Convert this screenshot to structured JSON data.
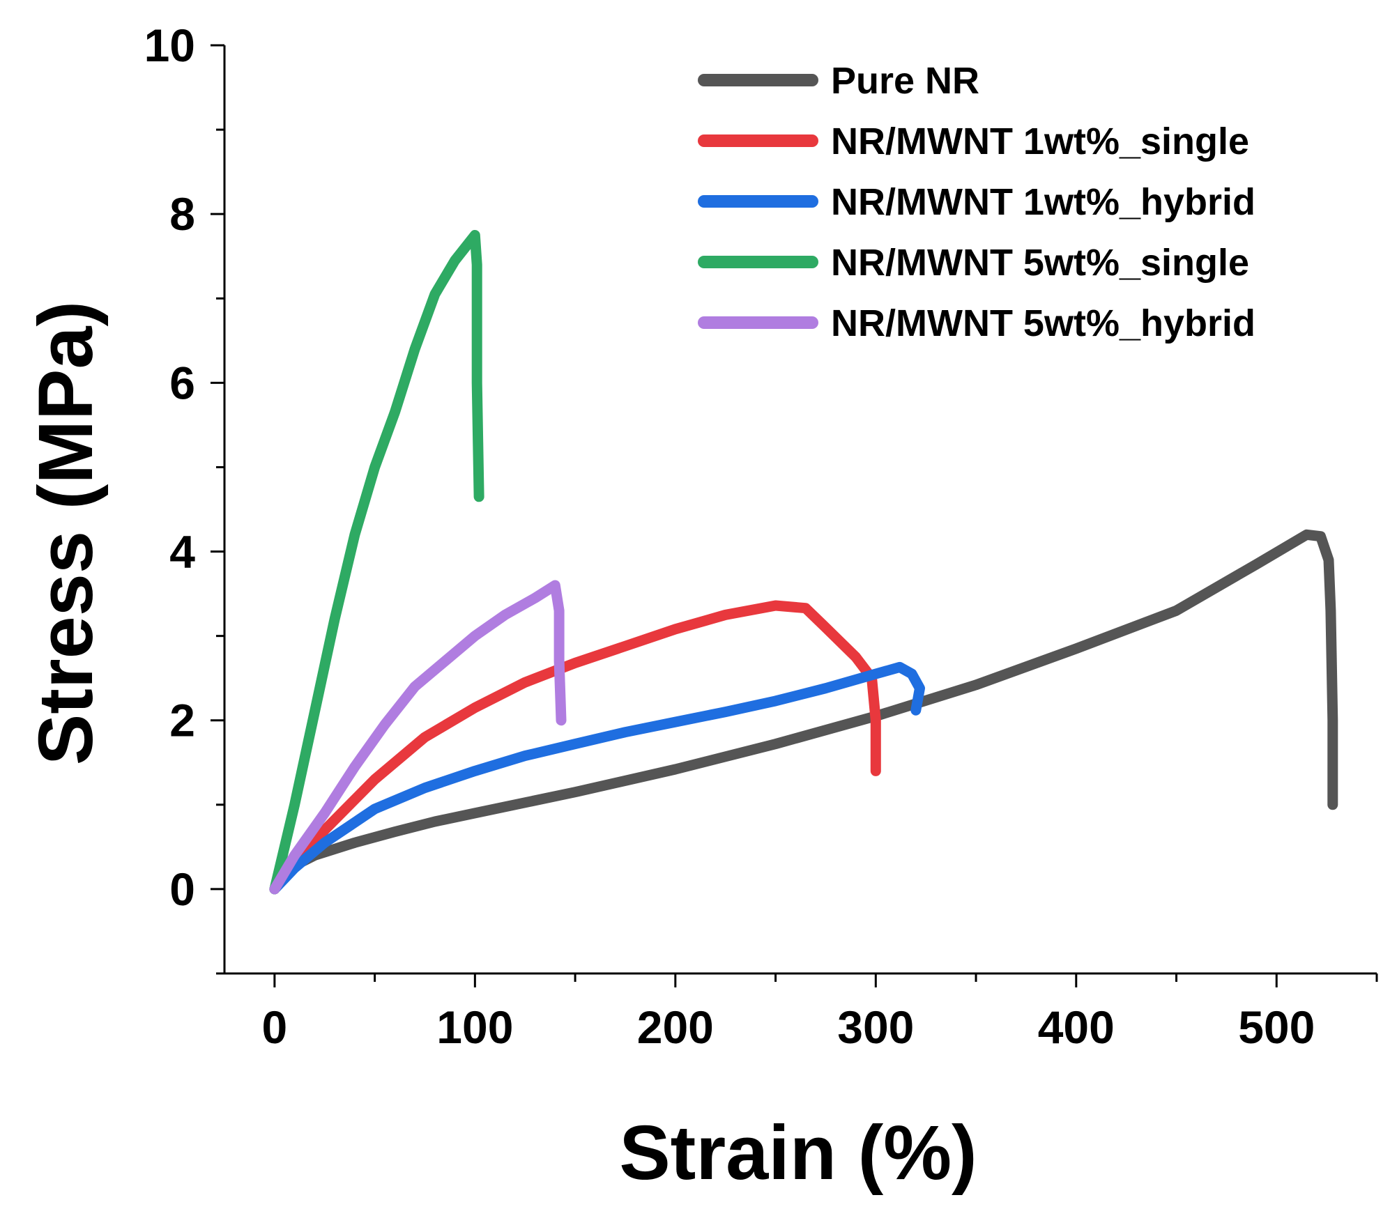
{
  "chart_data": {
    "type": "line",
    "title": "",
    "xlabel": "Strain (%)",
    "ylabel": "Stress (MPa)",
    "xlim": [
      -25,
      550
    ],
    "ylim": [
      -1,
      10
    ],
    "xticks": [
      0,
      100,
      200,
      300,
      400,
      500
    ],
    "xminor": [
      50,
      150,
      250,
      350,
      450,
      550
    ],
    "yticks": [
      0,
      2,
      4,
      6,
      8,
      10
    ],
    "yminor": [
      -1,
      1,
      3,
      5,
      7,
      9
    ],
    "grid": false,
    "legend_position": "top-right",
    "series": [
      {
        "name": "Pure NR",
        "color": "#555555",
        "points": [
          [
            0,
            0
          ],
          [
            5,
            0.18
          ],
          [
            10,
            0.28
          ],
          [
            20,
            0.4
          ],
          [
            40,
            0.55
          ],
          [
            60,
            0.68
          ],
          [
            80,
            0.8
          ],
          [
            100,
            0.9
          ],
          [
            150,
            1.15
          ],
          [
            200,
            1.42
          ],
          [
            250,
            1.72
          ],
          [
            300,
            2.05
          ],
          [
            350,
            2.42
          ],
          [
            400,
            2.85
          ],
          [
            450,
            3.3
          ],
          [
            490,
            3.85
          ],
          [
            515,
            4.2
          ],
          [
            522,
            4.18
          ],
          [
            526,
            3.9
          ],
          [
            527,
            3.3
          ],
          [
            528,
            2.0
          ],
          [
            528,
            1.0
          ]
        ]
      },
      {
        "name": "NR/MWNT 1wt%_single",
        "color": "#e8383d",
        "points": [
          [
            0,
            0
          ],
          [
            10,
            0.3
          ],
          [
            25,
            0.7
          ],
          [
            50,
            1.3
          ],
          [
            75,
            1.8
          ],
          [
            100,
            2.15
          ],
          [
            125,
            2.45
          ],
          [
            150,
            2.68
          ],
          [
            175,
            2.88
          ],
          [
            200,
            3.08
          ],
          [
            225,
            3.25
          ],
          [
            250,
            3.36
          ],
          [
            265,
            3.33
          ],
          [
            275,
            3.1
          ],
          [
            290,
            2.75
          ],
          [
            298,
            2.5
          ],
          [
            300,
            2.0
          ],
          [
            300,
            1.4
          ]
        ]
      },
      {
        "name": "NR/MWNT 1wt%_hybrid",
        "color": "#1f6ee0",
        "points": [
          [
            0,
            0
          ],
          [
            10,
            0.25
          ],
          [
            25,
            0.55
          ],
          [
            50,
            0.95
          ],
          [
            75,
            1.2
          ],
          [
            100,
            1.4
          ],
          [
            125,
            1.58
          ],
          [
            150,
            1.72
          ],
          [
            175,
            1.86
          ],
          [
            200,
            1.98
          ],
          [
            225,
            2.1
          ],
          [
            250,
            2.23
          ],
          [
            275,
            2.38
          ],
          [
            300,
            2.55
          ],
          [
            312,
            2.63
          ],
          [
            318,
            2.55
          ],
          [
            322,
            2.38
          ],
          [
            320,
            2.12
          ]
        ]
      },
      {
        "name": "NR/MWNT 5wt%_single",
        "color": "#2eaa63",
        "points": [
          [
            0,
            0
          ],
          [
            10,
            1.0
          ],
          [
            20,
            2.1
          ],
          [
            30,
            3.2
          ],
          [
            40,
            4.2
          ],
          [
            50,
            5.0
          ],
          [
            60,
            5.65
          ],
          [
            70,
            6.4
          ],
          [
            80,
            7.05
          ],
          [
            90,
            7.45
          ],
          [
            100,
            7.75
          ],
          [
            101,
            7.4
          ],
          [
            101,
            6.0
          ],
          [
            102,
            4.65
          ]
        ]
      },
      {
        "name": "NR/MWNT 5wt%_hybrid",
        "color": "#b07de0",
        "points": [
          [
            0,
            0
          ],
          [
            10,
            0.4
          ],
          [
            25,
            0.9
          ],
          [
            40,
            1.45
          ],
          [
            55,
            1.95
          ],
          [
            70,
            2.4
          ],
          [
            85,
            2.7
          ],
          [
            100,
            3.0
          ],
          [
            115,
            3.25
          ],
          [
            130,
            3.45
          ],
          [
            140,
            3.6
          ],
          [
            142,
            3.3
          ],
          [
            142,
            2.7
          ],
          [
            143,
            2.0
          ]
        ]
      }
    ]
  }
}
